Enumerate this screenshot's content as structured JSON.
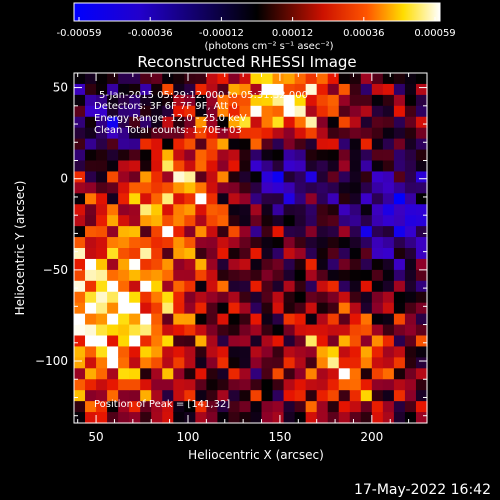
{
  "colorbar": {
    "ticks": [
      "-0.00059",
      "-0.00036",
      "-0.00012",
      "0.00012",
      "0.00036",
      "0.00059"
    ],
    "units": "(photons cm⁻² s⁻¹ asec⁻²)",
    "colormap": "blue-black-red-yellow-white",
    "vmin": -0.00059,
    "vmax": 0.00059
  },
  "annotations": {
    "date_line": "5-Jan-2015 05:29:12.000 to 05:31:32.000",
    "detectors_line": "Detectors: 3F 6F 7F 9F, Att 0",
    "energy_line": "Energy Range: 12.0 - 25.0 keV",
    "clean_line": "Clean    Total counts: 1.70E+03",
    "peak_line": "Position of Peak = [141,32]"
  },
  "footer": {
    "timestamp": "17-May-2022 16:42"
  },
  "chart_data": {
    "type": "heatmap",
    "title": "Reconstructed RHESSI Image",
    "xlabel": "Heliocentric X (arcsec)",
    "ylabel": "Heliocentric Y (arcsec)",
    "xlim": [
      38,
      230
    ],
    "ylim": [
      -134,
      58
    ],
    "x_ticks": [
      50,
      100,
      150,
      200
    ],
    "y_ticks": [
      50,
      0,
      -50,
      -100
    ],
    "x_tick_labels": [
      "50",
      "100",
      "150",
      "200"
    ],
    "y_tick_labels": [
      "50",
      "0",
      "−50",
      "−100"
    ],
    "grid_cells": [
      32,
      32
    ],
    "peak_position": [
      141,
      32
    ],
    "colors": {
      "low": "#0000ff",
      "mid": "#000000",
      "high_red": "#ff0000",
      "high_yellow": "#ffff00",
      "max": "#ffffff",
      "background": "#000000",
      "frame": "#ffffff"
    }
  }
}
